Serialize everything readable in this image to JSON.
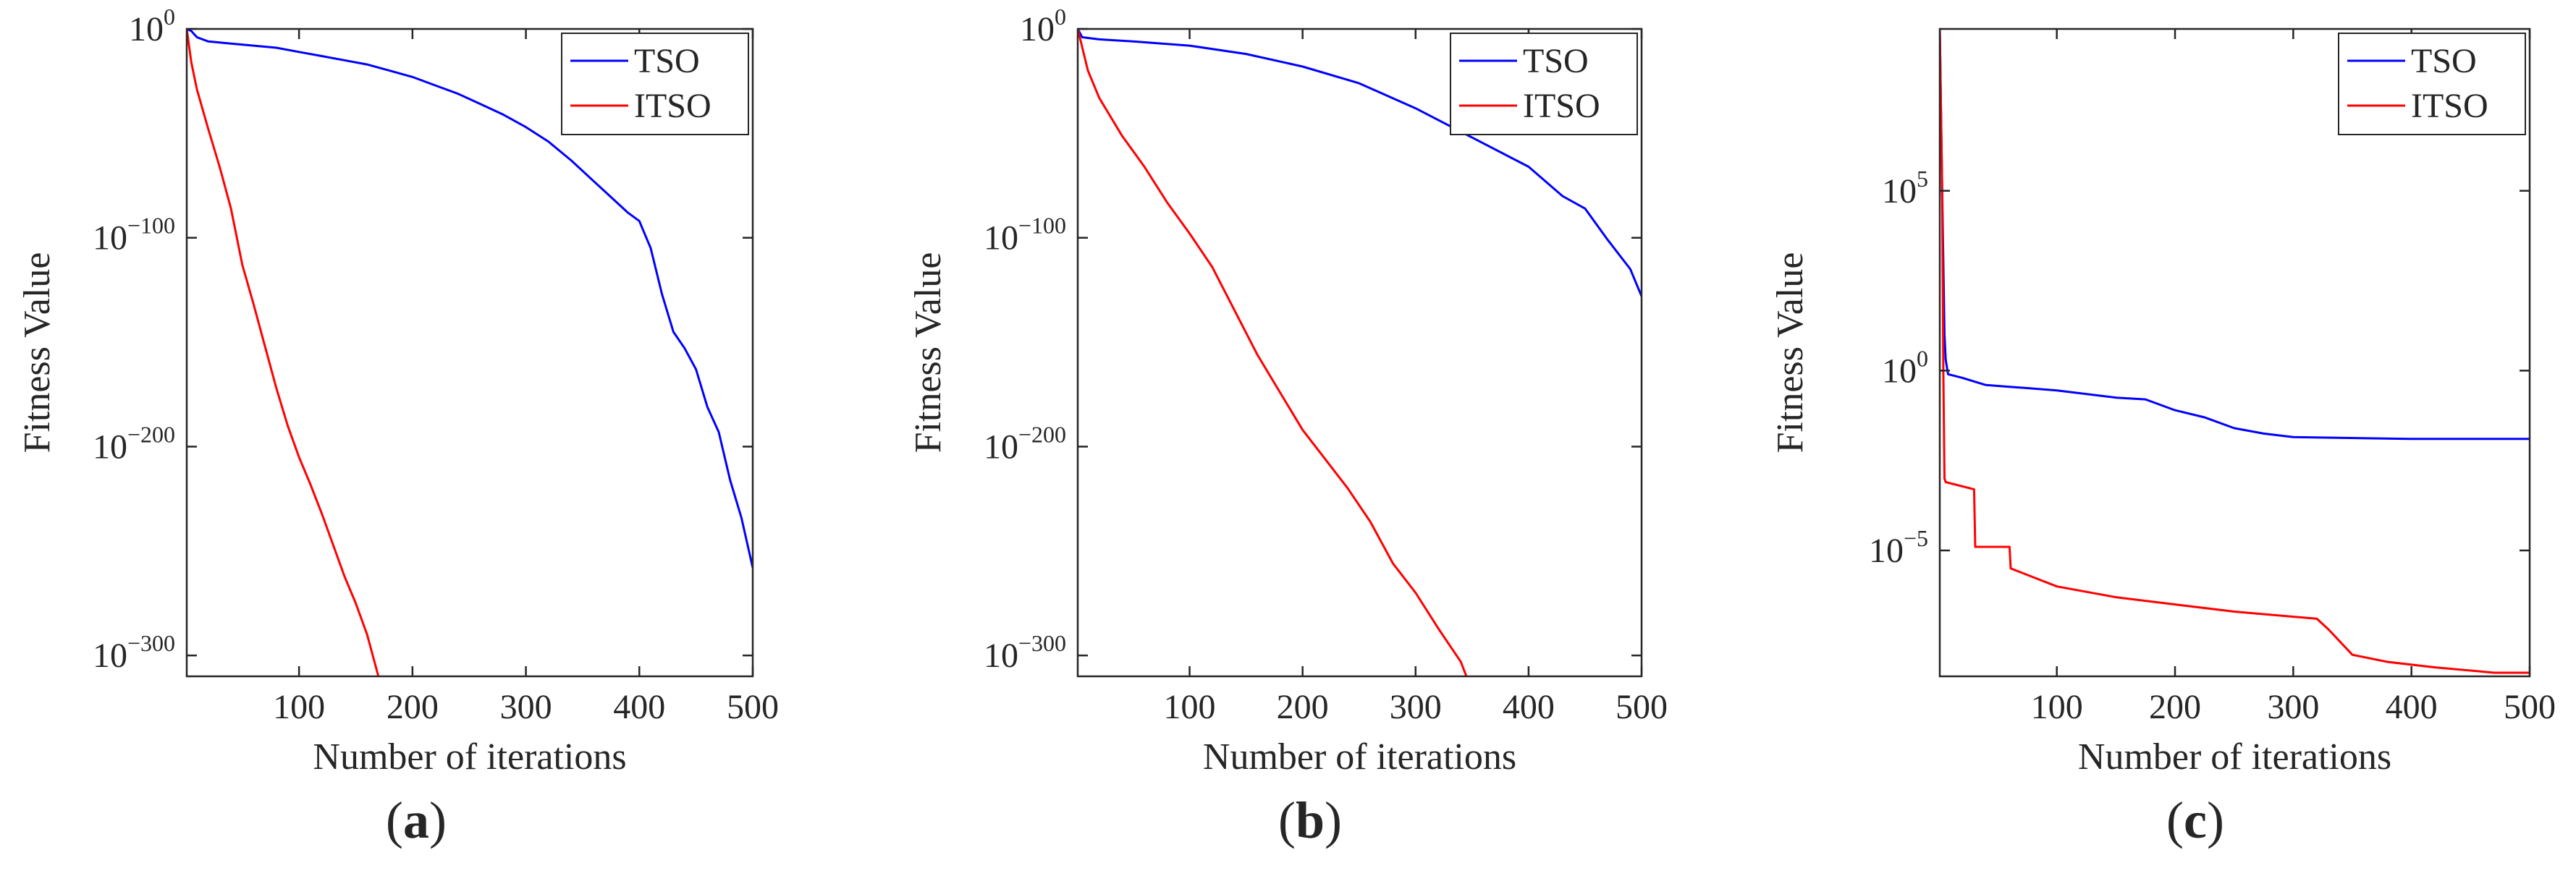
{
  "chart_data": [
    {
      "type": "line",
      "panel": "a",
      "caption": {
        "open": "(",
        "letter": "a",
        "close": ")"
      },
      "yscale": "log",
      "xlabel": "Number of iterations",
      "ylabel": "Fitness Value",
      "xlim": [
        1,
        500
      ],
      "ylim_log10": [
        -310,
        0
      ],
      "xticks": [
        100,
        200,
        300,
        400,
        500
      ],
      "yticks": [
        {
          "base": "10",
          "exp": "0",
          "log10": 0
        },
        {
          "base": "10",
          "exp": "−100",
          "log10": -100
        },
        {
          "base": "10",
          "exp": "−200",
          "log10": -200
        },
        {
          "base": "10",
          "exp": "−300",
          "log10": -300
        }
      ],
      "legend_position": "top-right",
      "series": [
        {
          "name": "TSO",
          "color": "#0000ff",
          "x": [
            1,
            5,
            10,
            20,
            40,
            60,
            80,
            100,
            120,
            140,
            160,
            180,
            200,
            220,
            240,
            260,
            280,
            300,
            320,
            340,
            360,
            380,
            390,
            400,
            410,
            420,
            430,
            440,
            450,
            460,
            470,
            480,
            490,
            500
          ],
          "log10_y": [
            0,
            -1,
            -4,
            -6,
            -7,
            -8,
            -9,
            -11,
            -13,
            -15,
            -17,
            -20,
            -23,
            -27,
            -31,
            -36,
            -41,
            -47,
            -54,
            -63,
            -73,
            -83,
            -88,
            -92,
            -105,
            -127,
            -145,
            -153,
            -163,
            -181,
            -193,
            -216,
            -234,
            -258
          ]
        },
        {
          "name": "ITSO",
          "color": "#ff0000",
          "x": [
            1,
            5,
            10,
            20,
            30,
            40,
            50,
            60,
            70,
            80,
            90,
            100,
            110,
            120,
            130,
            140,
            150,
            160,
            165,
            170
          ],
          "log10_y": [
            0,
            -16,
            -29,
            -48,
            -66,
            -86,
            -113,
            -132,
            -152,
            -172,
            -190,
            -205,
            -218,
            -232,
            -247,
            -262,
            -275,
            -290,
            -300,
            -310
          ]
        }
      ]
    },
    {
      "type": "line",
      "panel": "b",
      "caption": {
        "open": "(",
        "letter": "b",
        "close": ")"
      },
      "yscale": "log",
      "xlabel": "Number of iterations",
      "ylabel": "Fitness Value",
      "xlim": [
        1,
        500
      ],
      "ylim_log10": [
        -310,
        0
      ],
      "xticks": [
        100,
        200,
        300,
        400,
        500
      ],
      "yticks": [
        {
          "base": "10",
          "exp": "0",
          "log10": 0
        },
        {
          "base": "10",
          "exp": "−100",
          "log10": -100
        },
        {
          "base": "10",
          "exp": "−200",
          "log10": -200
        },
        {
          "base": "10",
          "exp": "−300",
          "log10": -300
        }
      ],
      "legend_position": "top-right",
      "series": [
        {
          "name": "TSO",
          "color": "#0000ff",
          "x": [
            1,
            5,
            20,
            50,
            100,
            150,
            200,
            250,
            300,
            350,
            400,
            430,
            450,
            470,
            490,
            500
          ],
          "log10_y": [
            0,
            -4,
            -5,
            -6,
            -8,
            -12,
            -18,
            -26,
            -38,
            -52,
            -66,
            -80,
            -86,
            -101,
            -115,
            -128
          ]
        },
        {
          "name": "ITSO",
          "color": "#ff0000",
          "x": [
            1,
            10,
            20,
            40,
            60,
            80,
            100,
            120,
            140,
            160,
            180,
            200,
            220,
            240,
            260,
            280,
            300,
            320,
            340,
            345
          ],
          "log10_y": [
            0,
            -20,
            -33,
            -51,
            -66,
            -83,
            -98,
            -114,
            -135,
            -156,
            -174,
            -192,
            -206,
            -220,
            -236,
            -256,
            -270,
            -287,
            -303,
            -310
          ]
        }
      ]
    },
    {
      "type": "line",
      "panel": "c",
      "caption": {
        "open": "(",
        "letter": "c",
        "close": ")"
      },
      "yscale": "log",
      "xlabel": "Number of iterations",
      "ylabel": "Fitness Value",
      "xlim": [
        1,
        500
      ],
      "ylim_log10": [
        -8.5,
        9.5
      ],
      "xticks": [
        100,
        200,
        300,
        400,
        500
      ],
      "yticks": [
        {
          "base": "10",
          "exp": "5",
          "log10": 5
        },
        {
          "base": "10",
          "exp": "0",
          "log10": 0
        },
        {
          "base": "10",
          "exp": "−5",
          "log10": -5
        }
      ],
      "legend_position": "top-right",
      "series": [
        {
          "name": "TSO",
          "color": "#0000ff",
          "x": [
            1,
            3,
            5,
            6,
            8,
            20,
            40,
            60,
            100,
            150,
            175,
            200,
            225,
            250,
            275,
            300,
            400,
            500
          ],
          "log10_y": [
            9.5,
            5,
            1,
            0.3,
            -0.1,
            -0.2,
            -0.4,
            -0.45,
            -0.55,
            -0.75,
            -0.8,
            -1.1,
            -1.3,
            -1.6,
            -1.75,
            -1.85,
            -1.9,
            -1.9
          ]
        },
        {
          "name": "ITSO",
          "color": "#ff0000",
          "x": [
            1,
            3,
            4,
            5,
            6,
            30,
            31,
            60,
            61,
            100,
            150,
            200,
            250,
            320,
            330,
            350,
            380,
            420,
            470,
            500
          ],
          "log10_y": [
            9.5,
            5,
            0,
            -3.0,
            -3.1,
            -3.3,
            -4.9,
            -4.9,
            -5.5,
            -6.0,
            -6.3,
            -6.5,
            -6.7,
            -6.9,
            -7.2,
            -7.9,
            -8.1,
            -8.25,
            -8.4,
            -8.4
          ]
        }
      ]
    }
  ]
}
